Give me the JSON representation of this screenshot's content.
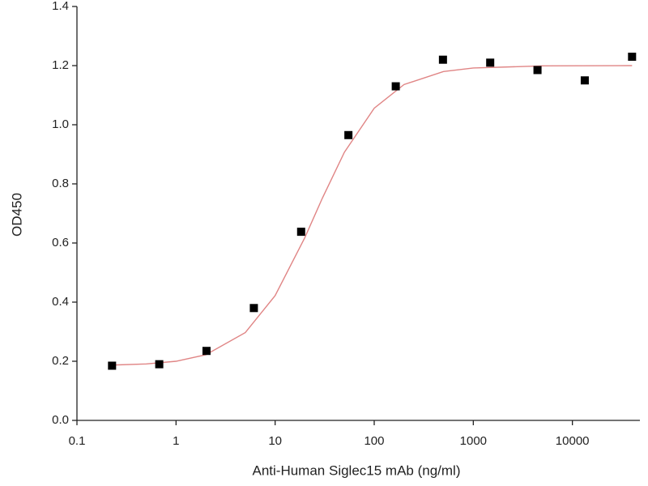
{
  "chart_data": {
    "type": "scatter",
    "xlabel": "Anti-Human Siglec15 mAb (ng/ml)",
    "ylabel": "OD450",
    "xscale": "log",
    "xlim": [
      0.1,
      48000
    ],
    "xticks": [
      0.1,
      1,
      10,
      100,
      1000,
      10000
    ],
    "ylim": [
      0,
      1.4
    ],
    "yticks": [
      {
        "value": 0,
        "label": "0.0"
      },
      0.2,
      0.4,
      0.6,
      0.8,
      {
        "value": 1,
        "label": "1.0"
      },
      1.2,
      1.4
    ],
    "series": [
      {
        "type": "scatter",
        "marker": "square",
        "color": "#000000",
        "x": [
          0.226,
          0.677,
          2.03,
          6.1,
          18.3,
          54.9,
          165,
          494,
          1481,
          4444,
          13333,
          40000
        ],
        "values": [
          0.185,
          0.19,
          0.235,
          0.38,
          0.638,
          0.965,
          1.13,
          1.22,
          1.21,
          1.185,
          1.15,
          1.23
        ]
      },
      {
        "type": "line",
        "color": "#e08585",
        "x": [
          0.22,
          0.5,
          1,
          2,
          5,
          10,
          20,
          30,
          50,
          100,
          200,
          500,
          1000,
          5000,
          40000
        ],
        "values": [
          0.187,
          0.191,
          0.2,
          0.222,
          0.297,
          0.422,
          0.619,
          0.752,
          0.907,
          1.056,
          1.136,
          1.18,
          1.192,
          1.199,
          1.2
        ]
      }
    ]
  }
}
